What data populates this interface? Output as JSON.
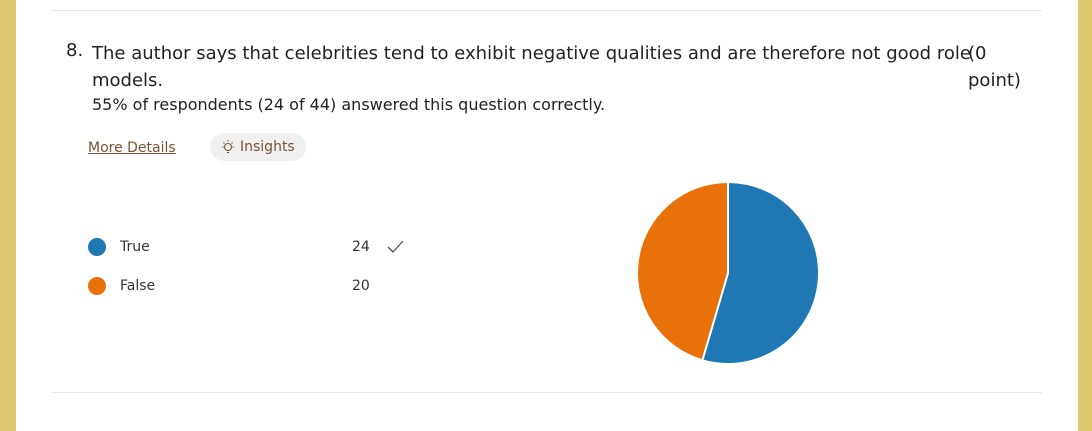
{
  "question": {
    "number": "8.",
    "text": "The author says that celebrities tend to exhibit negative qualities and are therefore not good role models.",
    "points": "(0 point)"
  },
  "summary": "55% of respondents (24 of 44) answered this question correctly.",
  "links": {
    "details": "More Details",
    "insights": "Insights"
  },
  "chart_data": {
    "type": "pie",
    "categories": [
      "True",
      "False"
    ],
    "values": [
      24,
      20
    ],
    "colors": [
      "#1f77b4",
      "#e8710a"
    ]
  }
}
